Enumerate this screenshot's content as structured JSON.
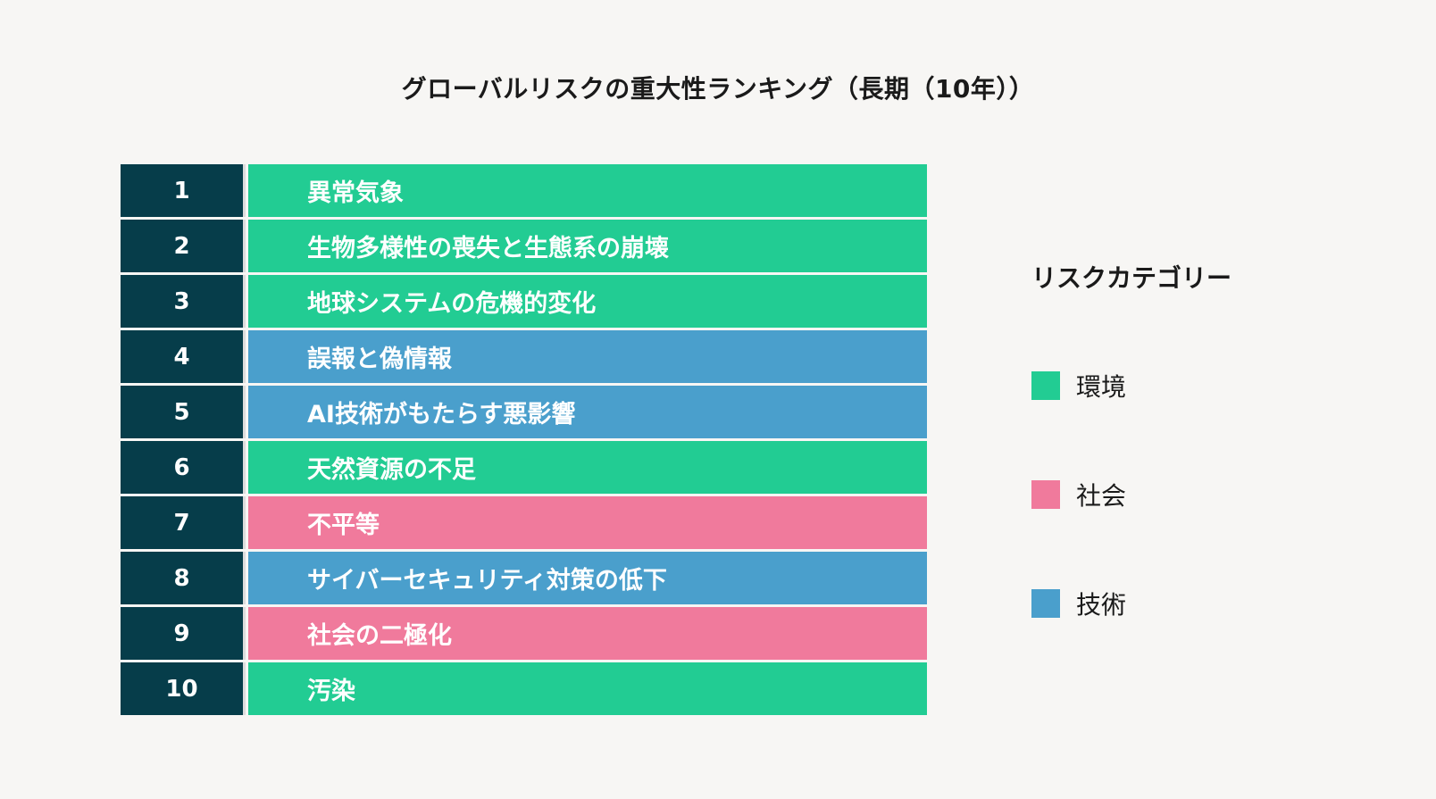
{
  "title": "グローバルリスクの重大性ランキング（長期（10年））",
  "categories": {
    "env": {
      "label": "環境",
      "color": "#22cc93"
    },
    "soc": {
      "label": "社会",
      "color": "#f07a9c"
    },
    "tech": {
      "label": "技術",
      "color": "#4a9fcc"
    }
  },
  "legend": {
    "title": "リスクカテゴリー",
    "items": [
      {
        "label": "環境",
        "color": "#22cc93"
      },
      {
        "label": "社会",
        "color": "#f07a9c"
      },
      {
        "label": "技術",
        "color": "#4a9fcc"
      }
    ]
  },
  "rankings": [
    {
      "rank": "1",
      "label": "異常気象",
      "category": "env"
    },
    {
      "rank": "2",
      "label": "生物多様性の喪失と生態系の崩壊",
      "category": "env"
    },
    {
      "rank": "3",
      "label": "地球システムの危機的変化",
      "category": "env"
    },
    {
      "rank": "4",
      "label": "誤報と偽情報",
      "category": "tech"
    },
    {
      "rank": "5",
      "label": "AI技術がもたらす悪影響",
      "category": "tech"
    },
    {
      "rank": "6",
      "label": "天然資源の不足",
      "category": "env"
    },
    {
      "rank": "7",
      "label": "不平等",
      "category": "soc"
    },
    {
      "rank": "8",
      "label": "サイバーセキュリティ対策の低下",
      "category": "tech"
    },
    {
      "rank": "9",
      "label": "社会の二極化",
      "category": "soc"
    },
    {
      "rank": "10",
      "label": "汚染",
      "category": "env"
    }
  ]
}
